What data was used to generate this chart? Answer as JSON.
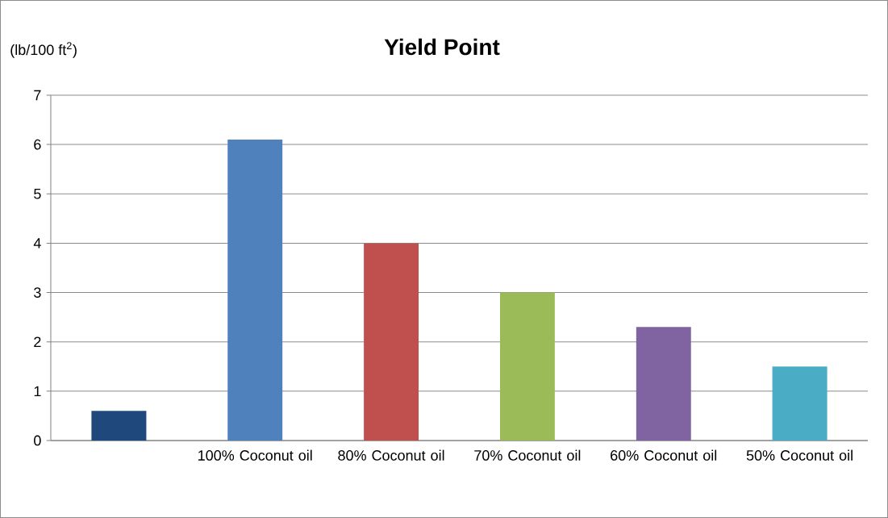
{
  "chart_data": {
    "type": "bar",
    "title": "**Yield Point**",
    "ylabel": "(lb/100 ft$^{2}$)",
    "categories": [
      null,
      "100% Coconut oil",
      "80% Coconut oil",
      "70% Coconut oil",
      "60% Coconut oil",
      "50% Coconut oil"
    ],
    "values": [
      0.6,
      6.1,
      4.0,
      3.0,
      2.3,
      1.5
    ],
    "colors": [
      "#1f497d",
      "#4f81bd",
      "#c0504d",
      "#9bbb59",
      "#8064a2",
      "#4bacc6"
    ],
    "ylim": [
      0,
      7
    ],
    "yticks": [
      0,
      1,
      2,
      3,
      4,
      5,
      6,
      7
    ],
    "grid": "y"
  }
}
